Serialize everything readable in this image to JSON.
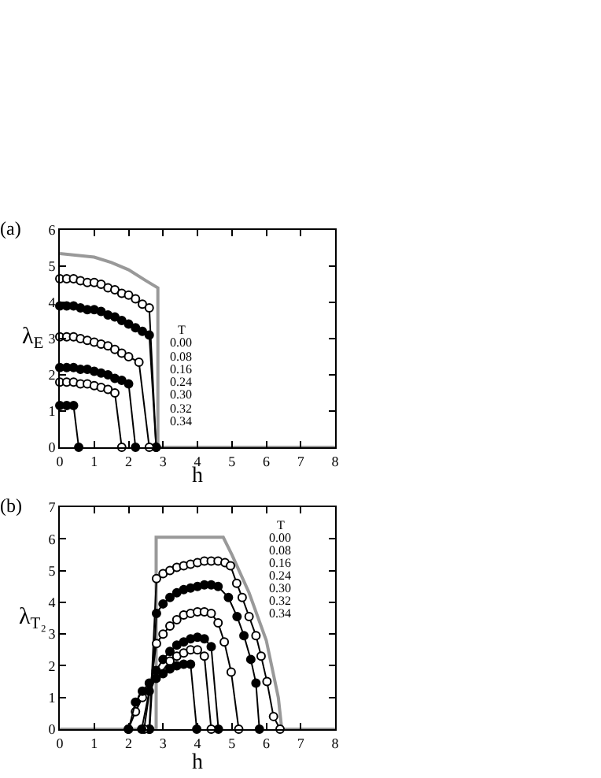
{
  "chart_data": [
    {
      "type": "line",
      "title": "(a)",
      "xlabel": "h",
      "ylabel": "λ$_{E}$",
      "xlim": [
        0,
        8
      ],
      "ylim": [
        0,
        6
      ],
      "xticks": [
        0,
        1,
        2,
        3,
        4,
        5,
        6,
        7,
        8
      ],
      "yticks": [
        0,
        1,
        2,
        3,
        4,
        5,
        6
      ],
      "grid": false,
      "legend": false,
      "annotations": [
        "T",
        "0.00",
        "0.08",
        "0.16",
        "0.24",
        "0.30",
        "0.32",
        "0.34"
      ],
      "series": [
        {
          "color": "#999999",
          "marker": "none",
          "x": [
            0,
            0.5,
            1,
            1.5,
            2,
            2.5,
            2.85,
            2.85,
            8
          ],
          "values": [
            5.35,
            5.3,
            5.25,
            5.1,
            4.9,
            4.6,
            4.4,
            0,
            0
          ]
        },
        {
          "color": "#000000",
          "marker": "circle-open",
          "x": [
            0,
            0.2,
            0.4,
            0.6,
            0.8,
            1,
            1.2,
            1.4,
            1.6,
            1.8,
            2,
            2.2,
            2.4,
            2.6,
            2.8
          ],
          "values": [
            4.65,
            4.65,
            4.65,
            4.6,
            4.55,
            4.55,
            4.5,
            4.4,
            4.35,
            4.25,
            4.2,
            4.1,
            3.95,
            3.85,
            0
          ]
        },
        {
          "color": "#000000",
          "marker": "circle",
          "x": [
            0,
            0.2,
            0.4,
            0.6,
            0.8,
            1,
            1.2,
            1.4,
            1.6,
            1.8,
            2,
            2.2,
            2.4,
            2.6,
            2.8
          ],
          "values": [
            3.9,
            3.9,
            3.9,
            3.85,
            3.8,
            3.8,
            3.75,
            3.65,
            3.6,
            3.5,
            3.4,
            3.3,
            3.2,
            3.1,
            0
          ]
        },
        {
          "color": "#000000",
          "marker": "circle-open",
          "x": [
            0,
            0.2,
            0.4,
            0.6,
            0.8,
            1,
            1.2,
            1.4,
            1.6,
            1.8,
            2,
            2.3,
            2.6
          ],
          "values": [
            3.05,
            3.05,
            3.05,
            3.0,
            2.95,
            2.9,
            2.85,
            2.8,
            2.7,
            2.6,
            2.5,
            2.35,
            0
          ]
        },
        {
          "color": "#000000",
          "marker": "circle",
          "x": [
            0,
            0.2,
            0.4,
            0.6,
            0.8,
            1,
            1.2,
            1.4,
            1.6,
            1.8,
            2,
            2.2
          ],
          "values": [
            2.2,
            2.2,
            2.2,
            2.15,
            2.15,
            2.1,
            2.05,
            2.0,
            1.9,
            1.85,
            1.75,
            0
          ]
        },
        {
          "color": "#000000",
          "marker": "circle-open",
          "x": [
            0,
            0.2,
            0.4,
            0.6,
            0.8,
            1,
            1.2,
            1.4,
            1.6,
            1.8
          ],
          "values": [
            1.8,
            1.8,
            1.8,
            1.75,
            1.75,
            1.7,
            1.65,
            1.6,
            1.5,
            0
          ]
        },
        {
          "color": "#000000",
          "marker": "circle",
          "x": [
            0,
            0.2,
            0.4,
            0.55
          ],
          "values": [
            1.15,
            1.15,
            1.15,
            0
          ]
        }
      ]
    },
    {
      "type": "line",
      "title": "(b)",
      "xlabel": "h",
      "ylabel": "λ$_{T₂}$",
      "xlim": [
        0,
        8
      ],
      "ylim": [
        0,
        7
      ],
      "xticks": [
        0,
        1,
        2,
        3,
        4,
        5,
        6,
        7,
        8
      ],
      "yticks": [
        0,
        1,
        2,
        3,
        4,
        5,
        6,
        7
      ],
      "grid": false,
      "legend": false,
      "annotations": [
        "T",
        "0.00",
        "0.08",
        "0.16",
        "0.24",
        "0.30",
        "0.32",
        "0.34"
      ],
      "series": [
        {
          "color": "#999999",
          "marker": "none",
          "x": [
            0,
            2.8,
            2.8,
            4.75,
            5.0,
            5.5,
            6.0,
            6.35,
            6.45,
            8
          ],
          "values": [
            0,
            0,
            6.05,
            6.05,
            5.5,
            4.3,
            2.8,
            1.0,
            0,
            0
          ]
        },
        {
          "color": "#000000",
          "marker": "circle-open",
          "x": [
            2.6,
            2.81,
            3.0,
            3.2,
            3.4,
            3.6,
            3.8,
            4.0,
            4.2,
            4.4,
            4.6,
            4.8,
            4.96,
            5.14,
            5.3,
            5.5,
            5.7,
            5.85,
            6.02,
            6.21,
            6.4
          ],
          "values": [
            0,
            4.75,
            4.9,
            5.0,
            5.1,
            5.15,
            5.2,
            5.25,
            5.3,
            5.3,
            5.3,
            5.25,
            5.15,
            4.6,
            4.15,
            3.55,
            2.95,
            2.3,
            1.5,
            0.4,
            0
          ]
        },
        {
          "color": "#000000",
          "marker": "circle",
          "x": [
            2.61,
            2.81,
            3.0,
            3.2,
            3.4,
            3.6,
            3.8,
            4.0,
            4.2,
            4.4,
            4.6,
            4.9,
            5.15,
            5.35,
            5.55,
            5.7,
            5.8
          ],
          "values": [
            0,
            3.65,
            3.95,
            4.15,
            4.3,
            4.4,
            4.45,
            4.5,
            4.55,
            4.55,
            4.5,
            4.15,
            3.55,
            2.95,
            2.2,
            1.45,
            0
          ]
        },
        {
          "color": "#000000",
          "marker": "circle-open",
          "x": [
            2.45,
            2.81,
            3.0,
            3.2,
            3.4,
            3.6,
            3.8,
            4.0,
            4.2,
            4.4,
            4.6,
            4.78,
            4.98,
            5.2
          ],
          "values": [
            0,
            2.7,
            3.0,
            3.25,
            3.45,
            3.6,
            3.65,
            3.7,
            3.7,
            3.65,
            3.35,
            2.75,
            1.8,
            0
          ]
        },
        {
          "color": "#000000",
          "marker": "circle",
          "x": [
            2.38,
            2.6,
            2.8,
            3.0,
            3.2,
            3.4,
            3.6,
            3.8,
            4.0,
            4.2,
            4.4,
            4.61
          ],
          "values": [
            0,
            1.2,
            1.85,
            2.2,
            2.45,
            2.65,
            2.75,
            2.85,
            2.9,
            2.85,
            2.6,
            0
          ]
        },
        {
          "color": "#000000",
          "marker": "circle-open",
          "x": [
            1.99,
            2.2,
            2.4,
            3.2,
            3.4,
            3.6,
            3.8,
            4.0,
            4.2,
            4.4
          ],
          "values": [
            0,
            0.55,
            1.0,
            2.15,
            2.3,
            2.4,
            2.5,
            2.5,
            2.3,
            0
          ]
        },
        {
          "color": "#000000",
          "marker": "circle",
          "x": [
            2.0,
            2.2,
            2.4,
            2.6,
            2.8,
            3.0,
            3.2,
            3.4,
            3.6,
            3.8,
            3.98
          ],
          "values": [
            0,
            0.85,
            1.2,
            1.45,
            1.6,
            1.75,
            1.9,
            2.0,
            2.05,
            2.05,
            0
          ]
        }
      ]
    }
  ]
}
